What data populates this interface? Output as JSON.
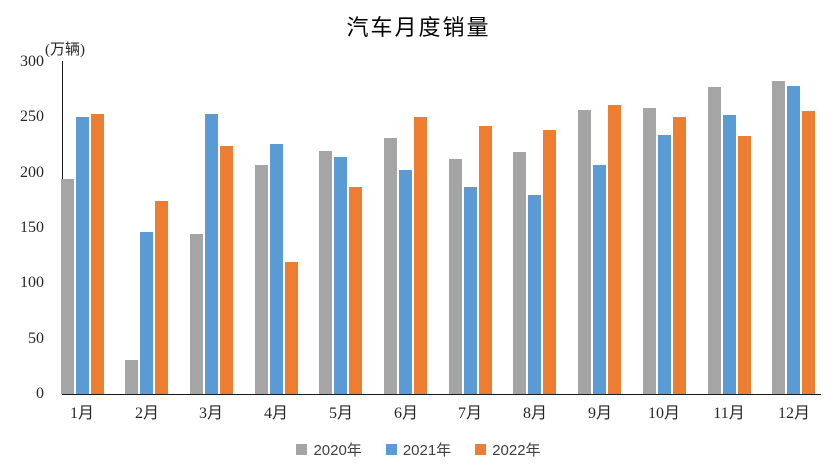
{
  "chart_data": {
    "type": "bar",
    "title": "汽车月度销量",
    "unit_label": "(万辆)",
    "xlabel": "",
    "ylabel": "(万辆)",
    "categories": [
      "1月",
      "2月",
      "3月",
      "4月",
      "5月",
      "6月",
      "7月",
      "8月",
      "9月",
      "10月",
      "11月",
      "12月"
    ],
    "series": [
      {
        "name": "2020年",
        "color": "#A5A5A5",
        "values": [
          194,
          31,
          145,
          207,
          220,
          231,
          212,
          219,
          257,
          258,
          277,
          283
        ]
      },
      {
        "name": "2021年",
        "color": "#5B9BD5",
        "values": [
          250,
          146,
          253,
          226,
          214,
          202,
          187,
          180,
          207,
          234,
          252,
          278
        ]
      },
      {
        "name": "2022年",
        "color": "#ED7D31",
        "values": [
          253,
          174,
          224,
          119,
          187,
          250,
          242,
          239,
          261,
          250,
          233,
          256
        ]
      }
    ],
    "ylim": [
      0,
      300
    ],
    "yticks": [
      0,
      50,
      100,
      150,
      200,
      250,
      300
    ],
    "grid": false,
    "legend_position": "bottom"
  },
  "colors": {
    "axis": "#1a1a1a",
    "tick_label": "#262626",
    "legend_text": "#404040",
    "background": "#ffffff"
  }
}
